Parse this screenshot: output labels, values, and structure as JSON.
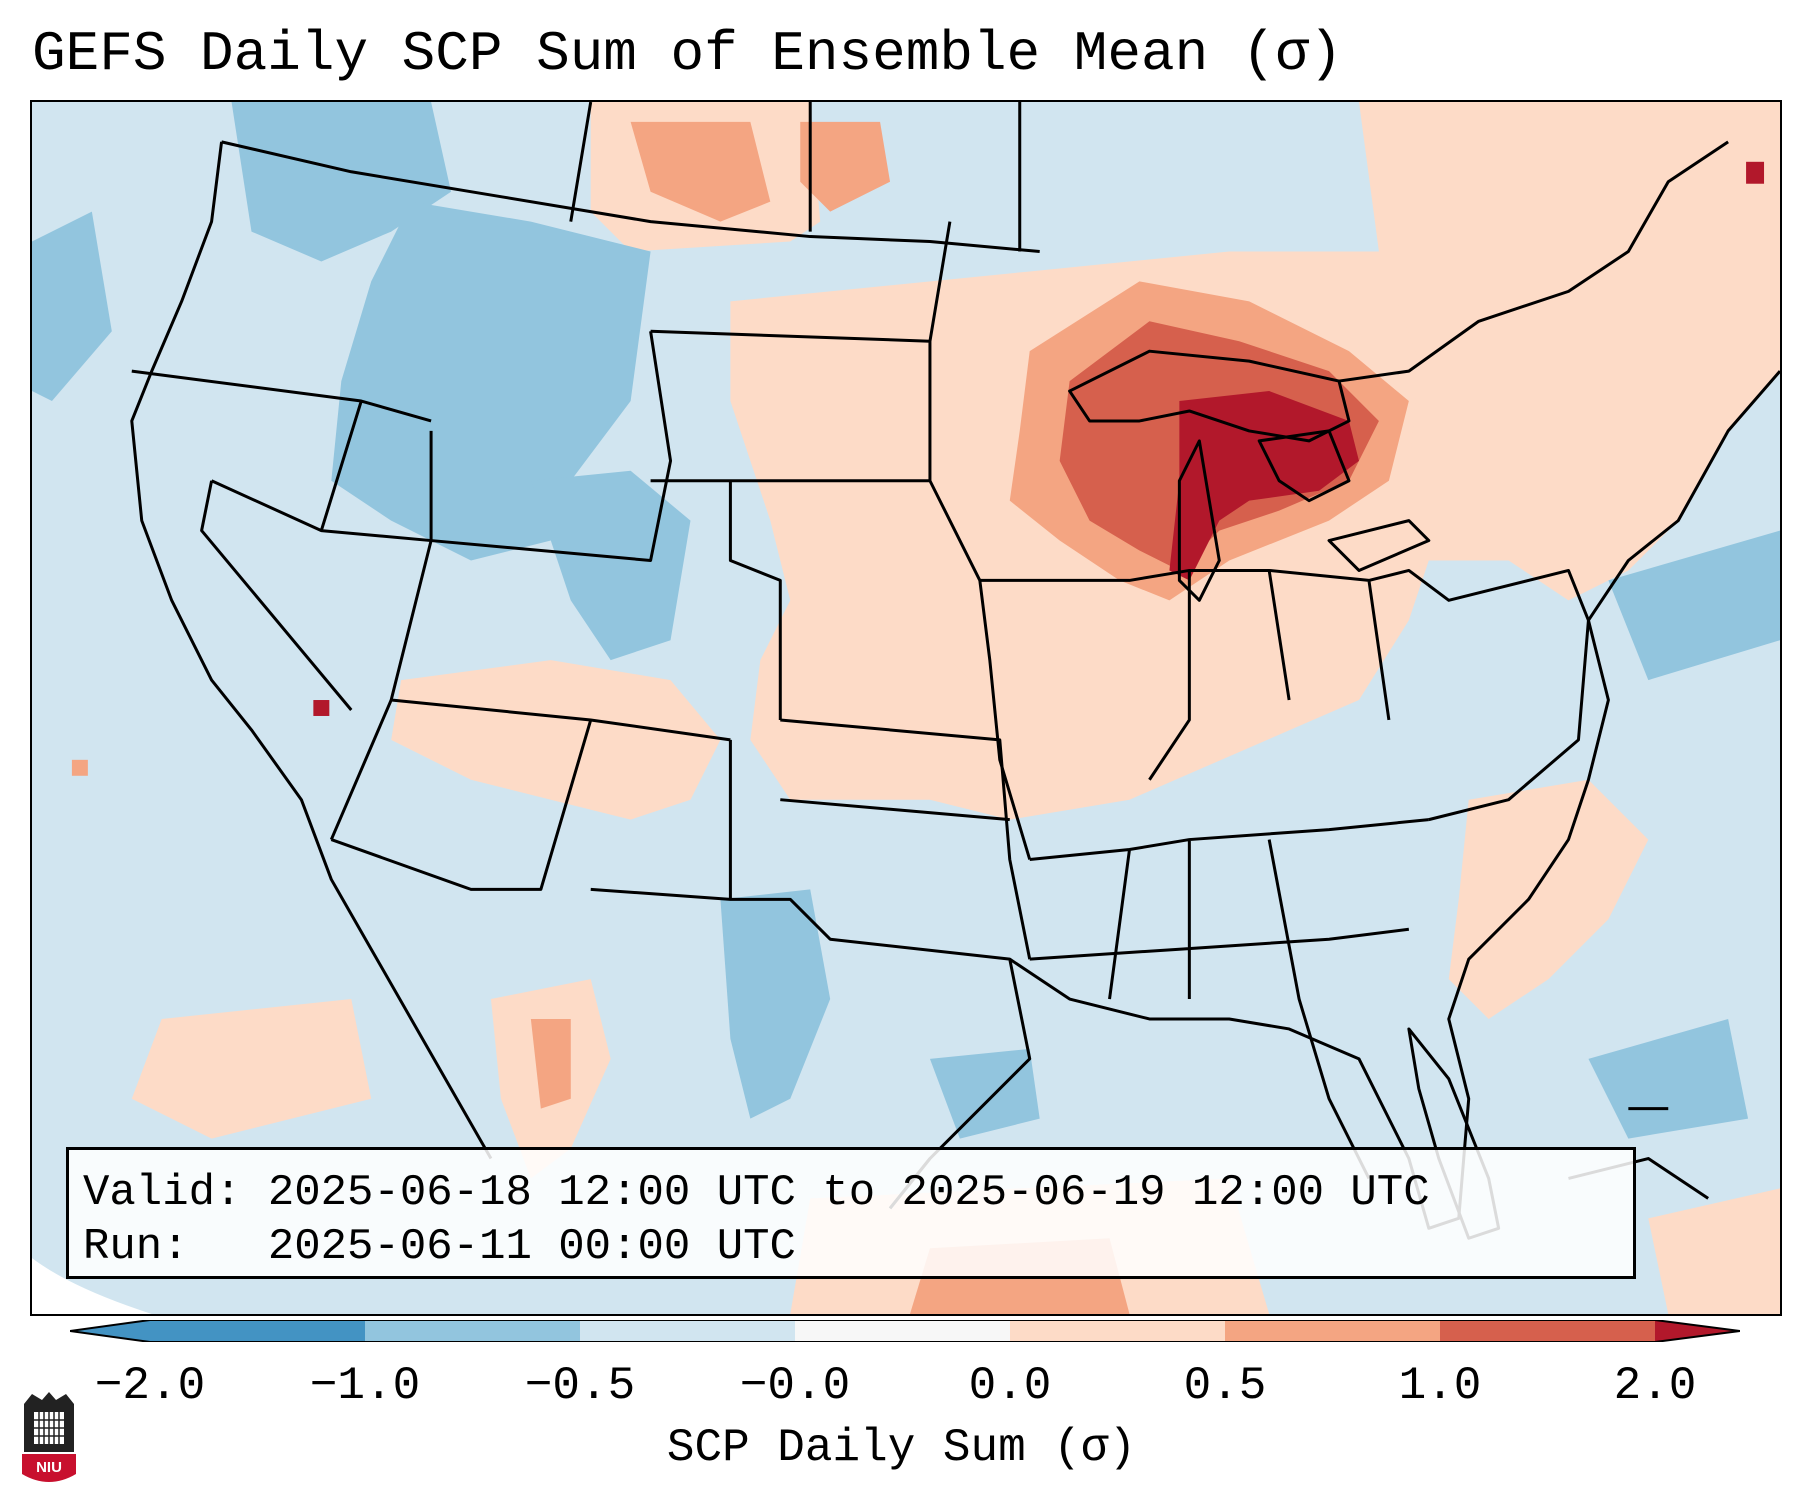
{
  "title": "GEFS Daily SCP Sum of Ensemble Mean (σ)",
  "info": {
    "valid_line": "Valid: 2025-06-18 12:00 UTC to 2025-06-19 12:00 UTC",
    "run_line": "Run:   2025-06-11 00:00 UTC"
  },
  "colorbar": {
    "label": "SCP Daily Sum (σ)",
    "ticks": [
      "−2.0",
      "−1.0",
      "−0.5",
      "−0.0",
      "0.0",
      "0.5",
      "1.0",
      "2.0"
    ],
    "colors": [
      "#4393c3",
      "#92c5de",
      "#d1e5f0",
      "#f7f7f7",
      "#fddbc7",
      "#f4a582",
      "#d6604d",
      "#b2182b"
    ],
    "extend": "both"
  },
  "map": {
    "background_category": "-0.5 to -0.0",
    "region": "Contiguous United States with southern Canada, northern Mexico, Gulf of Mexico and western Atlantic",
    "highlight": "Strongest positive anomaly over Michigan and the Great Lakes"
  },
  "logo": {
    "text": "NIU"
  }
}
